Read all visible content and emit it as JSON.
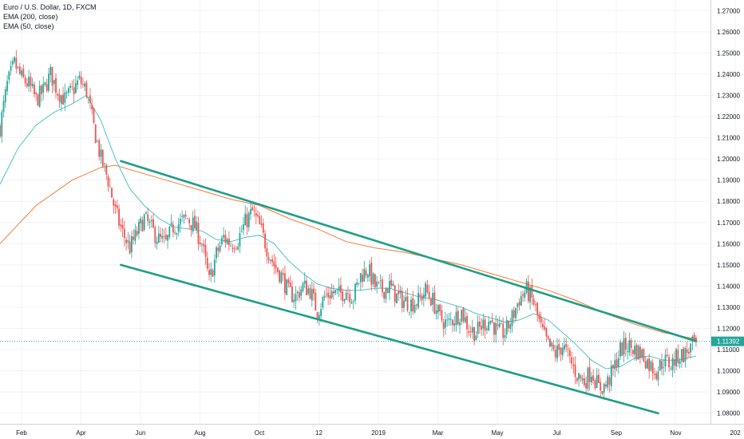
{
  "legend": {
    "symbol": "Euro / U.S. Dollar, 1D, FXCM",
    "ema200": "EMA (200, close)",
    "ema50": "EMA (50, close)"
  },
  "current_price": "1.11392",
  "colors": {
    "up": "#26a69a",
    "down": "#ef5350",
    "ema50": "#4fc3c9",
    "ema200": "#f57c38",
    "channel": "#1e9e86",
    "price_line": "#26a69a"
  },
  "chart_data": {
    "type": "candlestick",
    "title": "Euro / U.S. Dollar, 1D, FXCM",
    "x_tick_labels": [
      "Feb",
      "Apr",
      "Jun",
      "Aug",
      "Oct",
      "12",
      "2019",
      "Mar",
      "May",
      "Jul",
      "Sep",
      "Nov",
      "202"
    ],
    "y_tick_labels": [
      "1.27000",
      "1.26000",
      "1.25000",
      "1.24000",
      "1.23000",
      "1.22000",
      "1.21000",
      "1.20000",
      "1.19000",
      "1.18000",
      "1.17000",
      "1.16000",
      "1.15000",
      "1.14000",
      "1.13000",
      "1.12000",
      "1.11000",
      "1.10000",
      "1.09000",
      "1.08000"
    ],
    "ylim": [
      1.075,
      1.275
    ],
    "last_price": 1.11392,
    "price_path": [
      [
        0,
        1.215
      ],
      [
        4,
        1.235
      ],
      [
        8,
        1.245
      ],
      [
        12,
        1.238
      ],
      [
        16,
        1.235
      ],
      [
        20,
        1.228
      ],
      [
        24,
        1.232
      ],
      [
        28,
        1.24
      ],
      [
        32,
        1.232
      ],
      [
        36,
        1.228
      ],
      [
        40,
        1.232
      ],
      [
        44,
        1.237
      ],
      [
        48,
        1.232
      ],
      [
        52,
        1.215
      ],
      [
        56,
        1.2
      ],
      [
        60,
        1.19
      ],
      [
        64,
        1.175
      ],
      [
        68,
        1.165
      ],
      [
        72,
        1.158
      ],
      [
        76,
        1.165
      ],
      [
        80,
        1.172
      ],
      [
        84,
        1.167
      ],
      [
        88,
        1.162
      ],
      [
        92,
        1.16
      ],
      [
        96,
        1.168
      ],
      [
        100,
        1.17
      ],
      [
        104,
        1.172
      ],
      [
        108,
        1.168
      ],
      [
        112,
        1.16
      ],
      [
        116,
        1.142
      ],
      [
        120,
        1.155
      ],
      [
        124,
        1.163
      ],
      [
        128,
        1.16
      ],
      [
        132,
        1.162
      ],
      [
        136,
        1.17
      ],
      [
        140,
        1.175
      ],
      [
        144,
        1.168
      ],
      [
        148,
        1.158
      ],
      [
        152,
        1.15
      ],
      [
        156,
        1.145
      ],
      [
        160,
        1.137
      ],
      [
        164,
        1.135
      ],
      [
        168,
        1.14
      ],
      [
        172,
        1.138
      ],
      [
        176,
        1.128
      ],
      [
        180,
        1.135
      ],
      [
        184,
        1.137
      ],
      [
        188,
        1.136
      ],
      [
        192,
        1.138
      ],
      [
        196,
        1.135
      ],
      [
        200,
        1.145
      ],
      [
        204,
        1.148
      ],
      [
        208,
        1.14
      ],
      [
        212,
        1.138
      ],
      [
        216,
        1.14
      ],
      [
        220,
        1.135
      ],
      [
        224,
        1.133
      ],
      [
        228,
        1.132
      ],
      [
        232,
        1.133
      ],
      [
        236,
        1.138
      ],
      [
        240,
        1.133
      ],
      [
        244,
        1.125
      ],
      [
        248,
        1.122
      ],
      [
        252,
        1.125
      ],
      [
        256,
        1.128
      ],
      [
        260,
        1.12
      ],
      [
        264,
        1.118
      ],
      [
        268,
        1.122
      ],
      [
        272,
        1.124
      ],
      [
        276,
        1.118
      ],
      [
        280,
        1.118
      ],
      [
        284,
        1.125
      ],
      [
        288,
        1.134
      ],
      [
        292,
        1.138
      ],
      [
        296,
        1.132
      ],
      [
        300,
        1.12
      ],
      [
        304,
        1.112
      ],
      [
        308,
        1.108
      ],
      [
        312,
        1.112
      ],
      [
        316,
        1.105
      ],
      [
        320,
        1.098
      ],
      [
        324,
        1.095
      ],
      [
        328,
        1.1
      ],
      [
        332,
        1.092
      ],
      [
        336,
        1.093
      ],
      [
        340,
        1.1
      ],
      [
        344,
        1.11
      ],
      [
        348,
        1.112
      ],
      [
        352,
        1.11
      ],
      [
        356,
        1.108
      ],
      [
        360,
        1.103
      ],
      [
        364,
        1.1
      ],
      [
        368,
        1.105
      ],
      [
        372,
        1.103
      ],
      [
        376,
        1.107
      ],
      [
        380,
        1.108
      ],
      [
        384,
        1.112
      ],
      [
        386,
        1.11392
      ]
    ],
    "ema50_path": [
      [
        0,
        1.188
      ],
      [
        10,
        1.205
      ],
      [
        20,
        1.216
      ],
      [
        30,
        1.222
      ],
      [
        40,
        1.226
      ],
      [
        48,
        1.23
      ],
      [
        56,
        1.218
      ],
      [
        64,
        1.2
      ],
      [
        72,
        1.186
      ],
      [
        80,
        1.178
      ],
      [
        88,
        1.172
      ],
      [
        96,
        1.168
      ],
      [
        104,
        1.167
      ],
      [
        112,
        1.166
      ],
      [
        120,
        1.162
      ],
      [
        128,
        1.161
      ],
      [
        136,
        1.163
      ],
      [
        144,
        1.164
      ],
      [
        152,
        1.16
      ],
      [
        160,
        1.152
      ],
      [
        168,
        1.146
      ],
      [
        176,
        1.141
      ],
      [
        184,
        1.139
      ],
      [
        192,
        1.138
      ],
      [
        200,
        1.138
      ],
      [
        208,
        1.139
      ],
      [
        216,
        1.139
      ],
      [
        224,
        1.137
      ],
      [
        232,
        1.135
      ],
      [
        240,
        1.134
      ],
      [
        248,
        1.132
      ],
      [
        256,
        1.13
      ],
      [
        264,
        1.127
      ],
      [
        272,
        1.125
      ],
      [
        280,
        1.123
      ],
      [
        288,
        1.124
      ],
      [
        296,
        1.127
      ],
      [
        304,
        1.124
      ],
      [
        312,
        1.118
      ],
      [
        320,
        1.112
      ],
      [
        328,
        1.105
      ],
      [
        336,
        1.101
      ],
      [
        344,
        1.102
      ],
      [
        352,
        1.106
      ],
      [
        360,
        1.107
      ],
      [
        368,
        1.105
      ],
      [
        376,
        1.105
      ],
      [
        386,
        1.107
      ]
    ],
    "ema200_path": [
      [
        0,
        1.16
      ],
      [
        20,
        1.178
      ],
      [
        40,
        1.19
      ],
      [
        56,
        1.196
      ],
      [
        64,
        1.197
      ],
      [
        80,
        1.193
      ],
      [
        96,
        1.189
      ],
      [
        112,
        1.185
      ],
      [
        128,
        1.181
      ],
      [
        144,
        1.178
      ],
      [
        160,
        1.172
      ],
      [
        176,
        1.167
      ],
      [
        192,
        1.161
      ],
      [
        208,
        1.158
      ],
      [
        224,
        1.156
      ],
      [
        240,
        1.153
      ],
      [
        256,
        1.15
      ],
      [
        272,
        1.146
      ],
      [
        288,
        1.142
      ],
      [
        304,
        1.138
      ],
      [
        320,
        1.133
      ],
      [
        336,
        1.127
      ],
      [
        352,
        1.122
      ],
      [
        368,
        1.118
      ],
      [
        386,
        1.115
      ]
    ],
    "channel_upper": [
      [
        67,
        1.199
      ],
      [
        386,
        1.114
      ]
    ],
    "channel_lower": [
      [
        67,
        1.15
      ],
      [
        365,
        1.08
      ]
    ]
  }
}
